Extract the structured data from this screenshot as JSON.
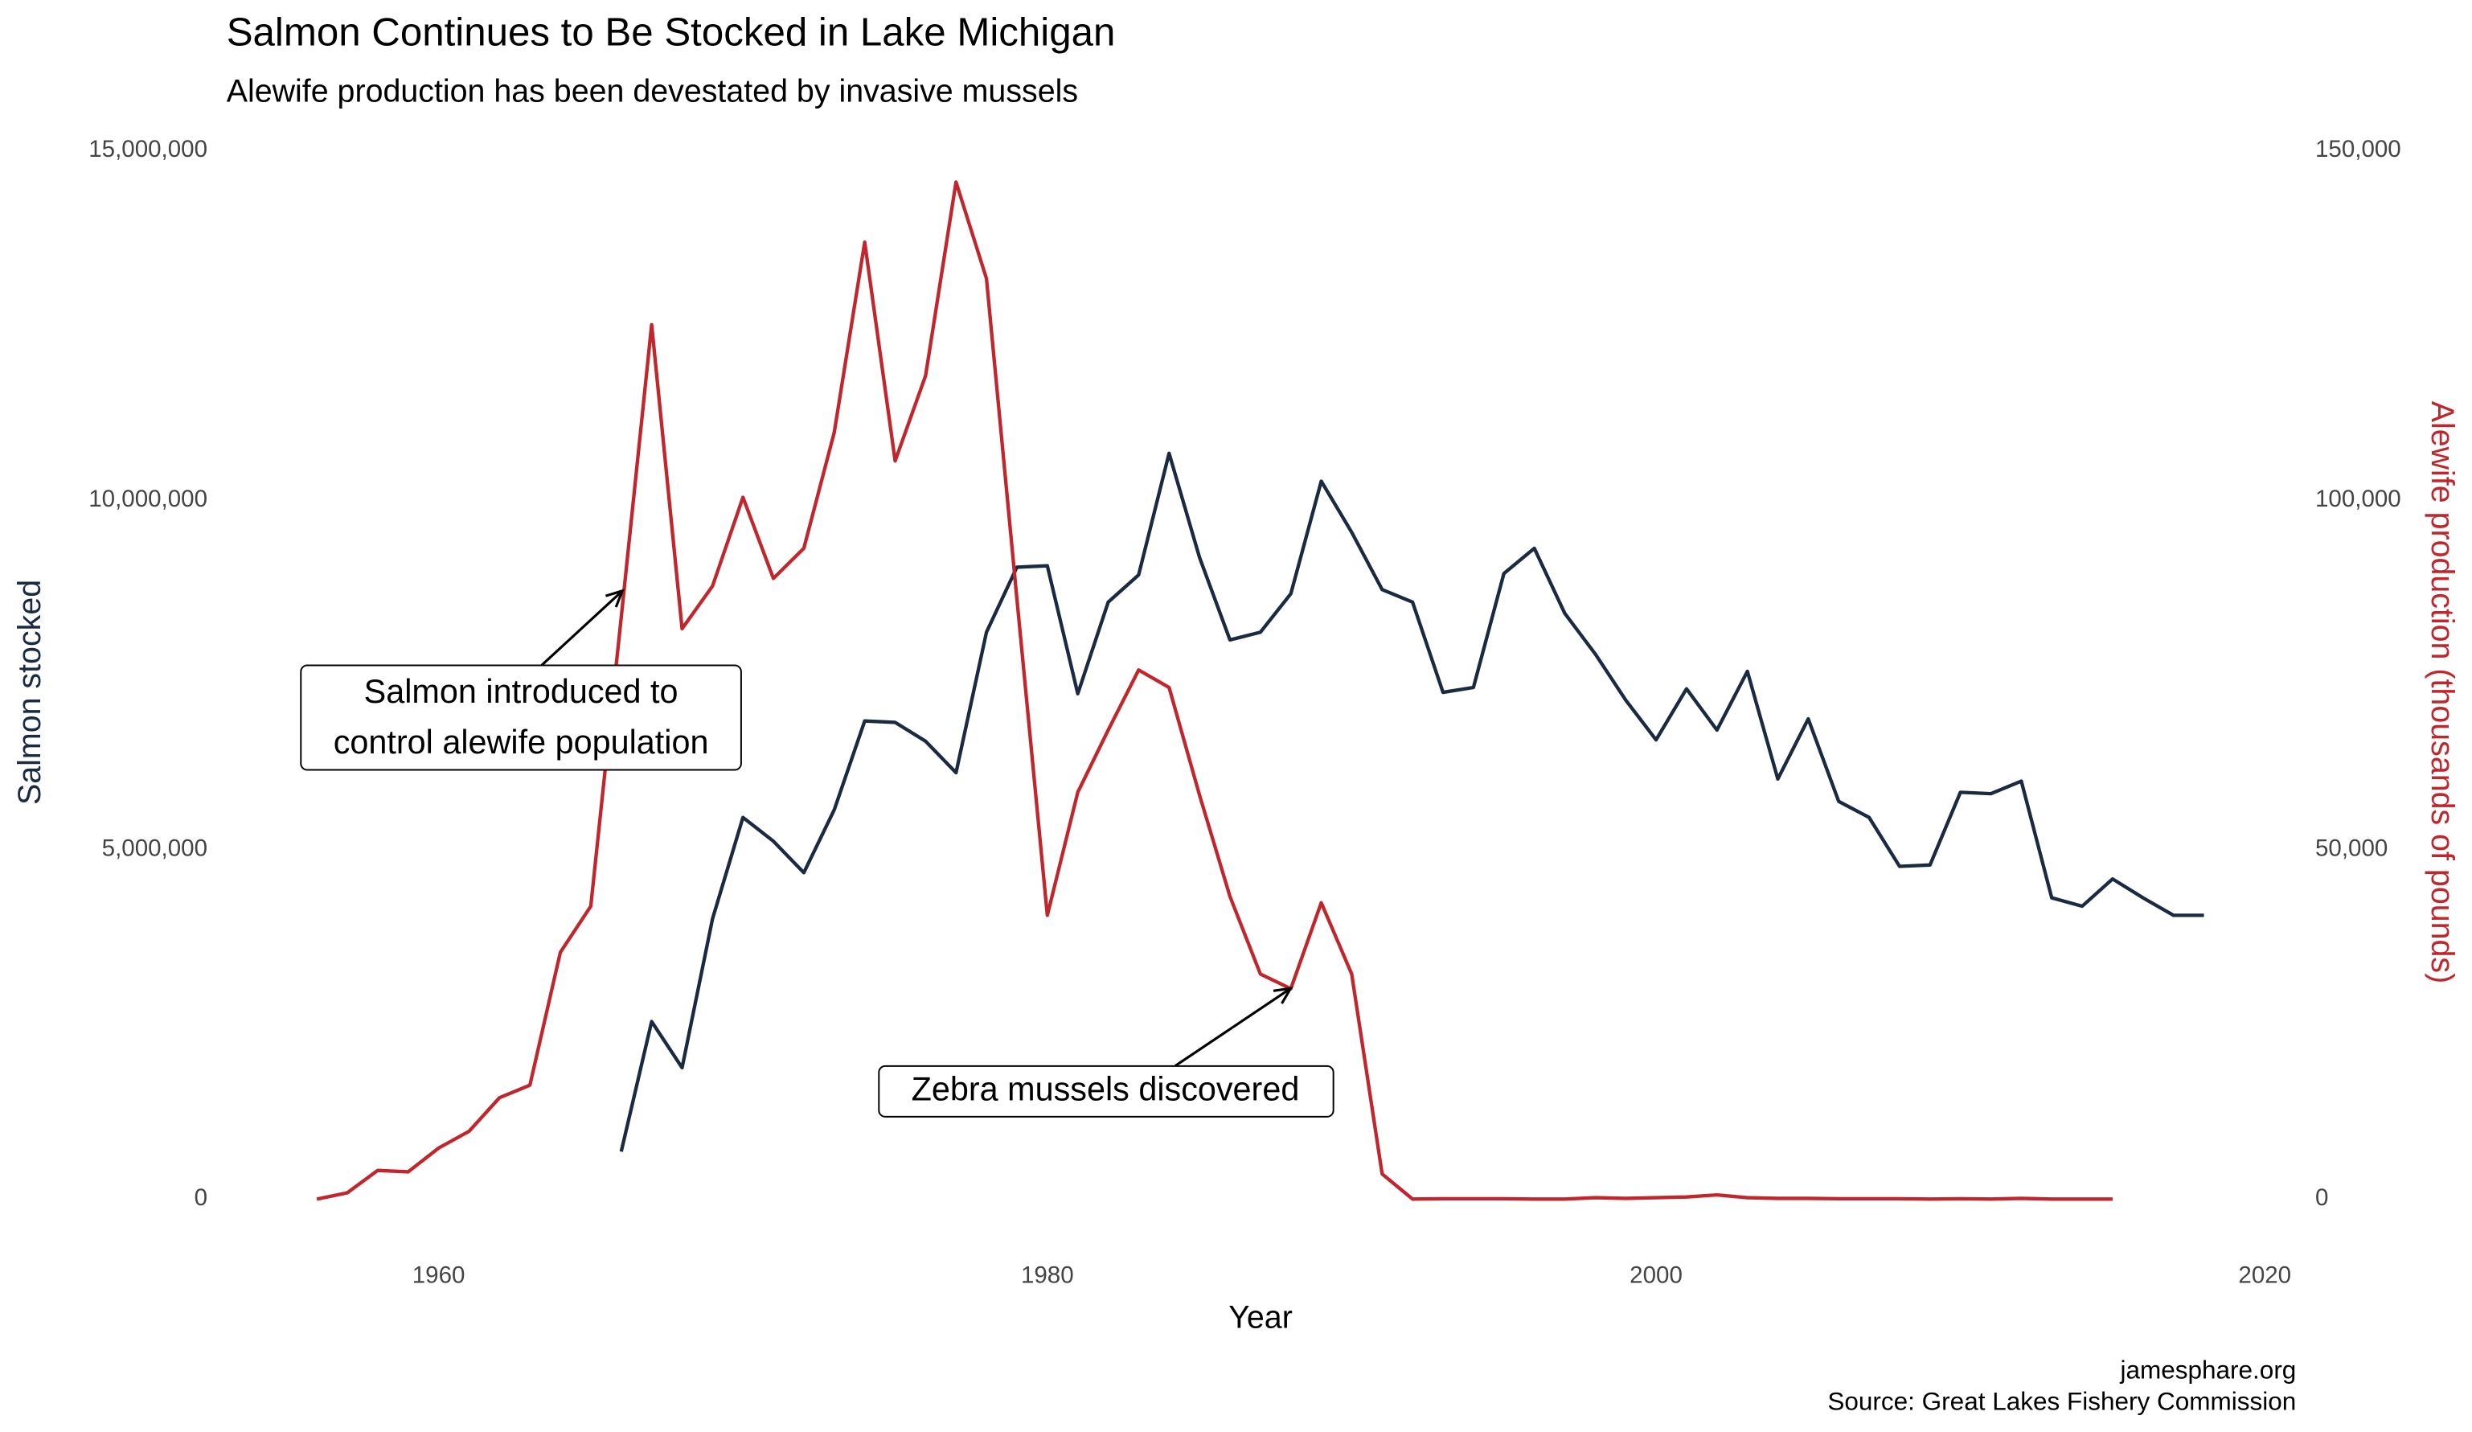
{
  "chart_data": {
    "type": "line",
    "title": "Salmon Continues to Be Stocked in Lake Michigan",
    "subtitle": "Alewife production has been devestated by invasive mussels",
    "x_label": "Year",
    "y_label": "Salmon stocked",
    "y2_label": "Alewife production (thousands of pounds)",
    "caption": [
      "jamesphare.org",
      "Source: Great Lakes Fishery Commission"
    ],
    "grid": false,
    "xlim": [
      1952.9,
      2021.1
    ],
    "xticks": [
      1960,
      1980,
      2000,
      2020
    ],
    "ylim": [
      -725000,
      15225000
    ],
    "yticks": [
      0,
      {
        "value": 5000000,
        "label": "5,000,000"
      },
      {
        "value": 10000000,
        "label": "10,000,000"
      },
      {
        "value": 15000000,
        "label": "15,000,000"
      }
    ],
    "y2lim": [
      -7250,
      152250
    ],
    "y2ticks": [
      0,
      {
        "value": 50000,
        "label": "50,000"
      },
      {
        "value": 100000,
        "label": "100,000"
      },
      {
        "value": 150000,
        "label": "150,000"
      }
    ],
    "series": [
      {
        "name": "Salmon stocked",
        "color": "#1a2a40",
        "x": [
          1966,
          1967,
          1968,
          1969,
          1970,
          1971,
          1972,
          1973,
          1974,
          1975,
          1976,
          1977,
          1978,
          1979,
          1980,
          1981,
          1982,
          1983,
          1984,
          1985,
          1986,
          1987,
          1988,
          1989,
          1990,
          1991,
          1992,
          1993,
          1994,
          1995,
          1996,
          1997,
          1998,
          1999,
          2000,
          2001,
          2002,
          2003,
          2004,
          2005,
          2006,
          2007,
          2008,
          2009,
          2010,
          2011,
          2012,
          2013,
          2014,
          2015,
          2016,
          2017,
          2018
        ],
        "values": [
          680000,
          2540000,
          1880000,
          4010000,
          5460000,
          5120000,
          4670000,
          5570000,
          6840000,
          6820000,
          6550000,
          6100000,
          8110000,
          9040000,
          9060000,
          7230000,
          8540000,
          8930000,
          10670000,
          9180000,
          8000000,
          8110000,
          8660000,
          10270000,
          9540000,
          8720000,
          8540000,
          7250000,
          7320000,
          8950000,
          9310000,
          8380000,
          7800000,
          7140000,
          6570000,
          7300000,
          6710000,
          7550000,
          6010000,
          6870000,
          5690000,
          5460000,
          4760000,
          4780000,
          5820000,
          5800000,
          5980000,
          4310000,
          4190000,
          4580000,
          4310000,
          4060000,
          4060000
        ]
      },
      {
        "name": "Alewife production",
        "color": "#c0272d",
        "axis": "y2",
        "x": [
          1956,
          1957,
          1958,
          1959,
          1960,
          1961,
          1962,
          1963,
          1964,
          1965,
          1966,
          1967,
          1968,
          1969,
          1970,
          1971,
          1972,
          1973,
          1974,
          1975,
          1976,
          1977,
          1978,
          1979,
          1980,
          1981,
          1982,
          1983,
          1984,
          1985,
          1986,
          1987,
          1988,
          1989,
          1990,
          1991,
          1992,
          1993,
          1994,
          1995,
          1996,
          1997,
          1998,
          1999,
          2000,
          2001,
          2002,
          2003,
          2004,
          2005,
          2006,
          2007,
          2008,
          2009,
          2010,
          2011,
          2012,
          2013,
          2014,
          2015
        ],
        "values": [
          0,
          900,
          4100,
          3900,
          7300,
          9700,
          14500,
          16300,
          35300,
          41900,
          83200,
          125100,
          81600,
          87700,
          100400,
          88800,
          93100,
          109700,
          136900,
          105600,
          117800,
          145500,
          131700,
          85900,
          40600,
          58200,
          67100,
          75700,
          73200,
          57800,
          43300,
          32200,
          30100,
          42400,
          32200,
          3600,
          0,
          50,
          50,
          50,
          0,
          0,
          200,
          100,
          200,
          300,
          600,
          200,
          100,
          100,
          50,
          50,
          50,
          0,
          50,
          0,
          100,
          0,
          0,
          0
        ]
      }
    ],
    "annotations": [
      {
        "lines": [
          "Salmon introduced to",
          "control alewife population"
        ]
      },
      {
        "lines": [
          "Zebra mussels discovered"
        ]
      }
    ]
  }
}
